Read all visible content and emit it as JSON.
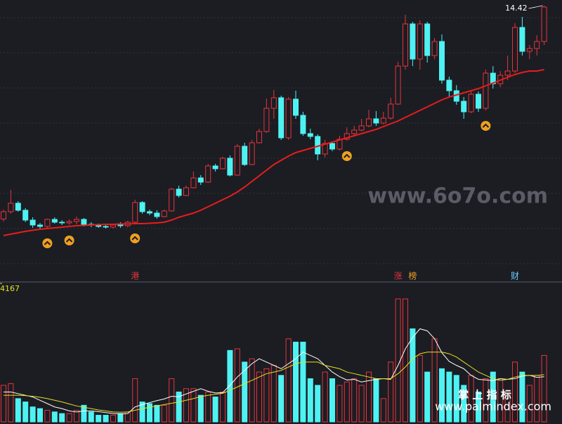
{
  "chart_data": {
    "type": "candlestick",
    "ylim": [
      6.98,
      14.58
    ],
    "up_color": "#e8333a",
    "down_color": "#4ef2f2",
    "ma_color": "#e81c1c",
    "candles": [
      [
        8.35,
        8.62,
        8.28,
        8.56
      ],
      [
        8.56,
        9.18,
        8.5,
        8.8
      ],
      [
        8.8,
        8.86,
        8.56,
        8.6
      ],
      [
        8.6,
        8.66,
        8.26,
        8.32
      ],
      [
        8.32,
        8.4,
        8.1,
        8.18
      ],
      [
        8.18,
        8.24,
        8.08,
        8.14
      ],
      [
        8.14,
        8.36,
        8.1,
        8.34
      ],
      [
        8.34,
        8.4,
        8.22,
        8.26
      ],
      [
        8.26,
        8.32,
        8.18,
        8.24
      ],
      [
        8.24,
        8.34,
        8.18,
        8.28
      ],
      [
        8.28,
        8.42,
        8.2,
        8.34
      ],
      [
        8.34,
        8.38,
        8.14,
        8.2
      ],
      [
        8.2,
        8.26,
        8.12,
        8.18
      ],
      [
        8.18,
        8.22,
        8.1,
        8.14
      ],
      [
        8.14,
        8.2,
        8.08,
        8.12
      ],
      [
        8.12,
        8.22,
        8.08,
        8.18
      ],
      [
        8.18,
        8.26,
        8.1,
        8.16
      ],
      [
        8.16,
        8.3,
        8.12,
        8.26
      ],
      [
        8.26,
        8.9,
        8.24,
        8.82
      ],
      [
        8.82,
        8.86,
        8.5,
        8.56
      ],
      [
        8.56,
        8.62,
        8.46,
        8.52
      ],
      [
        8.52,
        8.6,
        8.36,
        8.42
      ],
      [
        8.42,
        8.62,
        8.4,
        8.58
      ],
      [
        8.58,
        9.24,
        8.56,
        9.2
      ],
      [
        9.2,
        9.3,
        8.96,
        9.02
      ],
      [
        9.02,
        9.3,
        9.0,
        9.24
      ],
      [
        9.24,
        9.7,
        9.22,
        9.52
      ],
      [
        9.52,
        9.6,
        9.32,
        9.4
      ],
      [
        9.4,
        9.92,
        9.38,
        9.86
      ],
      [
        9.86,
        9.92,
        9.7,
        9.78
      ],
      [
        9.78,
        10.12,
        9.76,
        10.08
      ],
      [
        10.08,
        10.16,
        9.56,
        9.6
      ],
      [
        9.6,
        10.48,
        9.58,
        10.42
      ],
      [
        10.42,
        10.52,
        9.86,
        9.9
      ],
      [
        9.9,
        10.6,
        9.88,
        10.52
      ],
      [
        10.52,
        10.92,
        10.5,
        10.84
      ],
      [
        10.84,
        11.78,
        10.8,
        11.5
      ],
      [
        11.5,
        12.02,
        11.2,
        11.8
      ],
      [
        11.8,
        11.86,
        10.6,
        10.66
      ],
      [
        10.66,
        11.82,
        10.6,
        11.76
      ],
      [
        11.76,
        12.0,
        11.2,
        11.3
      ],
      [
        11.3,
        11.4,
        10.72,
        10.78
      ],
      [
        10.78,
        10.92,
        10.62,
        10.7
      ],
      [
        10.7,
        10.76,
        10.02,
        10.2
      ],
      [
        10.2,
        10.6,
        10.1,
        10.5
      ],
      [
        10.5,
        10.56,
        10.28,
        10.34
      ],
      [
        10.34,
        10.72,
        10.3,
        10.62
      ],
      [
        10.62,
        10.96,
        10.58,
        10.78
      ],
      [
        10.78,
        11.0,
        10.7,
        10.88
      ],
      [
        10.88,
        11.2,
        10.84,
        11.0
      ],
      [
        11.0,
        11.46,
        10.96,
        11.2
      ],
      [
        11.2,
        11.42,
        11.0,
        11.08
      ],
      [
        11.08,
        11.4,
        11.04,
        11.22
      ],
      [
        11.22,
        11.8,
        11.18,
        11.62
      ],
      [
        11.62,
        12.82,
        11.6,
        12.7
      ],
      [
        12.7,
        14.16,
        12.6,
        13.9
      ],
      [
        13.9,
        13.96,
        12.7,
        12.9
      ],
      [
        12.9,
        14.0,
        12.6,
        13.9
      ],
      [
        13.9,
        13.96,
        12.8,
        13.0
      ],
      [
        13.0,
        13.5,
        12.9,
        13.4
      ],
      [
        13.4,
        13.6,
        12.2,
        12.3
      ],
      [
        12.3,
        12.4,
        11.8,
        12.0
      ],
      [
        12.0,
        12.16,
        11.6,
        11.7
      ],
      [
        11.7,
        11.82,
        11.2,
        11.4
      ],
      [
        11.4,
        12.0,
        11.36,
        11.9
      ],
      [
        11.9,
        11.98,
        11.4,
        11.5
      ],
      [
        11.5,
        12.6,
        11.44,
        12.5
      ],
      [
        12.5,
        12.7,
        12.06,
        12.2
      ],
      [
        12.2,
        12.56,
        12.1,
        12.44
      ],
      [
        12.44,
        13.0,
        12.3,
        12.56
      ],
      [
        12.56,
        13.92,
        12.5,
        13.8
      ],
      [
        13.8,
        14.1,
        13.0,
        13.12
      ],
      [
        13.12,
        13.3,
        12.9,
        13.2
      ],
      [
        13.2,
        13.58,
        13.0,
        13.4
      ],
      [
        13.4,
        14.42,
        13.3,
        14.38
      ]
    ],
    "ma": [
      7.88,
      7.92,
      7.96,
      8.0,
      8.03,
      8.06,
      8.08,
      8.1,
      8.12,
      8.14,
      8.16,
      8.17,
      8.18,
      8.19,
      8.2,
      8.2,
      8.21,
      8.21,
      8.22,
      8.22,
      8.23,
      8.24,
      8.26,
      8.32,
      8.4,
      8.46,
      8.52,
      8.6,
      8.7,
      8.8,
      8.9,
      9.0,
      9.12,
      9.26,
      9.42,
      9.58,
      9.74,
      9.9,
      10.02,
      10.14,
      10.24,
      10.3,
      10.36,
      10.42,
      10.48,
      10.54,
      10.6,
      10.66,
      10.72,
      10.78,
      10.84,
      10.9,
      10.98,
      11.06,
      11.14,
      11.24,
      11.34,
      11.44,
      11.54,
      11.64,
      11.74,
      11.82,
      11.88,
      11.94,
      12.0,
      12.06,
      12.14,
      12.22,
      12.3,
      12.38,
      12.46,
      12.52,
      12.56,
      12.56,
      12.6
    ],
    "signal_indices": [
      6,
      9,
      18,
      47,
      66
    ],
    "events": [
      {
        "label": "港",
        "index": 18,
        "color": "#e8333a"
      },
      {
        "label": "涨",
        "index": 54,
        "color": "#e8333a"
      },
      {
        "label": "榜",
        "index": 56,
        "color": "#f0a020"
      },
      {
        "label": "财",
        "index": 70,
        "color": "#6ad0ff"
      }
    ],
    "volume": {
      "ylim": [
        0,
        4167
      ],
      "yticks": [
        4167
      ],
      "values": [
        1100,
        1150,
        700,
        600,
        450,
        400,
        350,
        300,
        250,
        250,
        350,
        500,
        300,
        200,
        200,
        200,
        250,
        300,
        1300,
        600,
        550,
        500,
        500,
        1300,
        900,
        1000,
        1000,
        800,
        900,
        750,
        900,
        2150,
        2200,
        1800,
        1900,
        1500,
        1600,
        1700,
        1400,
        2500,
        2400,
        2400,
        1300,
        1100,
        1500,
        1300,
        1100,
        1200,
        1300,
        1100,
        1500,
        1300,
        700,
        1800,
        3700,
        3700,
        2800,
        2000,
        1500,
        2500,
        1600,
        1500,
        1400,
        1100,
        1400,
        900,
        1300,
        1500,
        1300,
        900,
        1800,
        1500,
        1100,
        1400,
        2000
      ],
      "ma_series": [
        {
          "color": "#ffffff",
          "values": [
            900,
            900,
            850,
            800,
            750,
            650,
            550,
            450,
            400,
            330,
            300,
            330,
            330,
            310,
            280,
            250,
            240,
            250,
            450,
            520,
            580,
            640,
            690,
            770,
            760,
            840,
            920,
            1000,
            920,
            870,
            880,
            1100,
            1350,
            1550,
            1750,
            1900,
            1800,
            1700,
            1600,
            1750,
            1900,
            2100,
            2000,
            1900,
            1700,
            1500,
            1360,
            1260,
            1280,
            1200,
            1240,
            1280,
            1300,
            1280,
            1700,
            2200,
            2540,
            2800,
            2740,
            2500,
            2080,
            1820,
            1700,
            1600,
            1400,
            1280,
            1260,
            1240,
            1300,
            1280,
            1300,
            1380,
            1400,
            1340,
            1360
          ]
        },
        {
          "color": "#e8e020",
          "values": [
            800,
            800,
            800,
            790,
            770,
            740,
            700,
            650,
            600,
            540,
            480,
            440,
            400,
            360,
            330,
            300,
            290,
            300,
            350,
            400,
            440,
            480,
            520,
            560,
            600,
            650,
            700,
            760,
            800,
            830,
            860,
            950,
            1050,
            1150,
            1250,
            1350,
            1450,
            1500,
            1550,
            1650,
            1750,
            1800,
            1800,
            1800,
            1700,
            1650,
            1600,
            1500,
            1450,
            1400,
            1350,
            1300,
            1300,
            1300,
            1450,
            1650,
            1900,
            2050,
            2100,
            2100,
            2100,
            2050,
            1950,
            1800,
            1650,
            1500,
            1400,
            1300,
            1250,
            1280,
            1350,
            1400,
            1400,
            1400,
            1420
          ]
        }
      ]
    },
    "watermark": "www.6o7o.com",
    "brand": "掌 上 指 标",
    "brand_url": "www.palmindex.com"
  }
}
